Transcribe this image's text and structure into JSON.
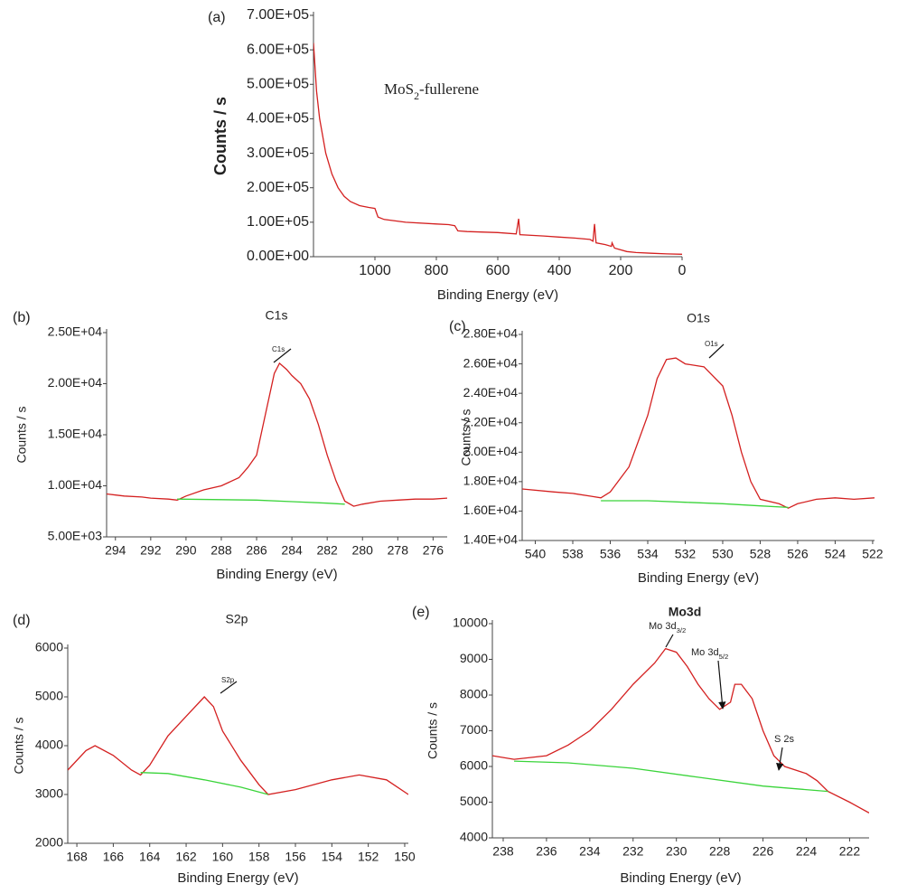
{
  "chart_data": [
    {
      "type": "line",
      "panel_label": "(a)",
      "x_label": "Binding Energy (eV)",
      "y_label": "Counts / s",
      "xlim": [
        1200,
        0
      ],
      "xticks": [
        1000,
        800,
        600,
        400,
        200,
        0
      ],
      "ylim": [
        0,
        700000
      ],
      "yticks": [
        {
          "value": 0,
          "label": "0.00E+00"
        },
        {
          "value": 100000,
          "label": "1.00E+05"
        },
        {
          "value": 200000,
          "label": "2.00E+05"
        },
        {
          "value": 300000,
          "label": "3.00E+05"
        },
        {
          "value": 400000,
          "label": "4.00E+05"
        },
        {
          "value": 500000,
          "label": "5.00E+05"
        },
        {
          "value": 600000,
          "label": "6.00E+05"
        },
        {
          "value": 700000,
          "label": "7.00E+05"
        }
      ],
      "annotations": [
        {
          "text": "MoS",
          "subscript": "2",
          "suffix": "-fullerene"
        }
      ],
      "series": [
        {
          "color": "#d42020",
          "x": [
            1200,
            1190,
            1180,
            1160,
            1140,
            1120,
            1100,
            1080,
            1050,
            1020,
            1000,
            990,
            970,
            900,
            800,
            760,
            740,
            730,
            700,
            600,
            540,
            532,
            528,
            450,
            400,
            350,
            300,
            290,
            285,
            280,
            250,
            230,
            228,
            220,
            180,
            150,
            100,
            50,
            0
          ],
          "values": [
            620000,
            480000,
            400000,
            300000,
            240000,
            200000,
            175000,
            160000,
            148000,
            143000,
            140000,
            115000,
            108000,
            100000,
            95000,
            93000,
            90000,
            75000,
            73000,
            70000,
            66000,
            110000,
            64000,
            60000,
            57000,
            54000,
            50000,
            45000,
            95000,
            40000,
            35000,
            30000,
            40000,
            25000,
            15000,
            12000,
            10000,
            8000,
            7000
          ]
        }
      ]
    },
    {
      "type": "line",
      "panel_label": "(b)",
      "title": "C1s",
      "x_label": "Binding Energy (eV)",
      "y_label": "Counts / s",
      "xlim": [
        294.5,
        275.2
      ],
      "xticks": [
        294,
        292,
        290,
        288,
        286,
        284,
        282,
        280,
        278,
        276
      ],
      "ylim": [
        5000,
        25000
      ],
      "yticks": [
        {
          "value": 5000,
          "label": "5.00E+03"
        },
        {
          "value": 10000,
          "label": "1.00E+04"
        },
        {
          "value": 15000,
          "label": "1.50E+04"
        },
        {
          "value": 20000,
          "label": "2.00E+04"
        },
        {
          "value": 25000,
          "label": "2.50E+04"
        }
      ],
      "annotations": [
        {
          "text": "C1s"
        }
      ],
      "series": [
        {
          "color": "#d42020",
          "x": [
            294.5,
            293.5,
            292.5,
            292,
            291,
            290.5,
            290,
            289,
            288,
            287,
            286.5,
            286,
            285.5,
            285,
            284.7,
            284.3,
            284,
            283.5,
            283,
            282.5,
            282,
            281.5,
            281,
            280.5,
            280,
            279,
            278,
            277,
            276,
            275.2
          ],
          "values": [
            9200,
            9000,
            8900,
            8800,
            8700,
            8600,
            9000,
            9600,
            10000,
            10800,
            11800,
            13000,
            17000,
            21000,
            22000,
            21400,
            20800,
            20000,
            18500,
            16000,
            13000,
            10500,
            8500,
            8000,
            8200,
            8500,
            8600,
            8700,
            8700,
            8800
          ]
        },
        {
          "color": "#3ad43a",
          "x": [
            290.5,
            288,
            286,
            284,
            282,
            281
          ],
          "values": [
            8700,
            8650,
            8600,
            8450,
            8300,
            8200
          ]
        }
      ]
    },
    {
      "type": "line",
      "panel_label": "(c)",
      "title": "O1s",
      "x_label": "Binding Energy (eV)",
      "y_label": "Counts / s",
      "xlim": [
        540.7,
        521.9
      ],
      "xticks": [
        540,
        538,
        536,
        534,
        532,
        530,
        528,
        526,
        524,
        522
      ],
      "ylim": [
        14000,
        28000
      ],
      "yticks": [
        {
          "value": 14000,
          "label": "1.40E+04"
        },
        {
          "value": 16000,
          "label": "1.60E+04"
        },
        {
          "value": 18000,
          "label": "1.80E+04"
        },
        {
          "value": 20000,
          "label": "2.00E+04"
        },
        {
          "value": 22000,
          "label": "2.20E+04"
        },
        {
          "value": 24000,
          "label": "2.40E+04"
        },
        {
          "value": 26000,
          "label": "2.60E+04"
        },
        {
          "value": 28000,
          "label": "2.80E+04"
        }
      ],
      "annotations": [
        {
          "text": "O1s"
        }
      ],
      "series": [
        {
          "color": "#d42020",
          "x": [
            540.7,
            539,
            538,
            537,
            536.5,
            536,
            535,
            534,
            533.5,
            533,
            532.5,
            532,
            531,
            530,
            529.5,
            529,
            528.5,
            528,
            527,
            526.5,
            526,
            525,
            524,
            523,
            521.9
          ],
          "values": [
            17500,
            17300,
            17200,
            17000,
            16900,
            17300,
            19000,
            22500,
            25000,
            26300,
            26400,
            26000,
            25800,
            24500,
            22500,
            20000,
            18000,
            16800,
            16500,
            16200,
            16500,
            16800,
            16900,
            16800,
            16900
          ]
        },
        {
          "color": "#3ad43a",
          "x": [
            536.5,
            534,
            532,
            530,
            528,
            526.5
          ],
          "values": [
            16700,
            16700,
            16600,
            16500,
            16350,
            16250
          ]
        }
      ]
    },
    {
      "type": "line",
      "panel_label": "(d)",
      "title": "S2p",
      "x_label": "Binding Energy (eV)",
      "y_label": "Counts / s",
      "xlim": [
        168.5,
        149.8
      ],
      "xticks": [
        168,
        166,
        164,
        162,
        160,
        158,
        156,
        154,
        152,
        150
      ],
      "ylim": [
        2000,
        6000
      ],
      "yticks": [
        2000,
        3000,
        4000,
        5000,
        6000
      ],
      "annotations": [
        {
          "text": "S2p"
        }
      ],
      "series": [
        {
          "color": "#d42020",
          "x": [
            168.5,
            167.5,
            167,
            166,
            165,
            164.5,
            164,
            163,
            162,
            161,
            160.5,
            160,
            159,
            158,
            157.5,
            156,
            154,
            152.5,
            151,
            149.8
          ],
          "values": [
            3500,
            3900,
            4000,
            3800,
            3500,
            3400,
            3600,
            4200,
            4600,
            5000,
            4800,
            4300,
            3700,
            3200,
            3000,
            3100,
            3300,
            3400,
            3300,
            3000
          ]
        },
        {
          "color": "#3ad43a",
          "x": [
            164.5,
            163,
            161,
            159,
            157.5
          ],
          "values": [
            3450,
            3430,
            3300,
            3150,
            3000
          ]
        }
      ]
    },
    {
      "type": "line",
      "panel_label": "(e)",
      "title": "Mo3d",
      "x_label": "Binding Energy (eV)",
      "y_label": "Counts / s",
      "xlim": [
        238.5,
        221.1
      ],
      "xticks": [
        238,
        236,
        234,
        232,
        230,
        228,
        226,
        224,
        222
      ],
      "ylim": [
        4000,
        10000
      ],
      "yticks": [
        4000,
        5000,
        6000,
        7000,
        8000,
        9000,
        10000
      ],
      "annotations": [
        {
          "text": "Mo 3d",
          "subscript": "3/2"
        },
        {
          "text": "Mo 3d",
          "subscript": "5/2"
        },
        {
          "text": "S 2s"
        }
      ],
      "series": [
        {
          "color": "#d42020",
          "x": [
            238.5,
            237.5,
            236,
            235,
            234,
            233,
            232,
            231,
            230.5,
            230,
            229.5,
            229,
            228.5,
            228,
            227.5,
            227.3,
            227,
            226.5,
            226,
            225.5,
            225,
            224,
            223.5,
            223,
            222,
            221.1
          ],
          "values": [
            6300,
            6200,
            6300,
            6600,
            7000,
            7600,
            8300,
            8900,
            9300,
            9200,
            8800,
            8300,
            7900,
            7600,
            7800,
            8300,
            8300,
            7900,
            7000,
            6300,
            6000,
            5800,
            5600,
            5300,
            5000,
            4700
          ]
        },
        {
          "color": "#3ad43a",
          "x": [
            237.5,
            235,
            232,
            229,
            226,
            223
          ],
          "values": [
            6150,
            6100,
            5950,
            5700,
            5450,
            5300
          ]
        }
      ]
    }
  ]
}
